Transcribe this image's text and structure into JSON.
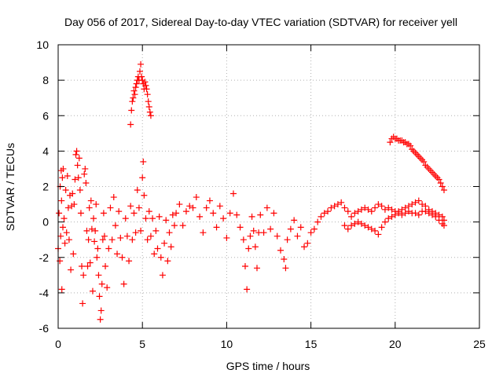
{
  "chart_data": {
    "type": "scatter",
    "title": "Day 056 of 2017, Sidereal Day-to-day VTEC variation (SDTVAR) for receiver yell",
    "xlabel": "GPS time / hours",
    "ylabel": "SDTVAR / TECUs",
    "xlim": [
      0,
      25
    ],
    "ylim": [
      -6,
      10
    ],
    "x_ticks": [
      0,
      5,
      10,
      15,
      20,
      25
    ],
    "y_ticks": [
      -6,
      -4,
      -2,
      0,
      2,
      4,
      6,
      8,
      10
    ],
    "grid": true,
    "marker": "+",
    "colors": {
      "series": "#ff0000",
      "grid": "#b0b0b0",
      "axes": "#000000",
      "background": "#ffffff"
    },
    "series": [
      {
        "name": "SDTVAR",
        "points": [
          [
            0.0,
            -1.5
          ],
          [
            0.05,
            0.5
          ],
          [
            0.1,
            -2.2
          ],
          [
            0.12,
            2.0
          ],
          [
            0.15,
            -0.8
          ],
          [
            0.18,
            2.9
          ],
          [
            0.2,
            1.2
          ],
          [
            0.22,
            -3.8
          ],
          [
            0.25,
            2.5
          ],
          [
            0.28,
            -0.3
          ],
          [
            0.3,
            3.0
          ],
          [
            0.35,
            0.2
          ],
          [
            0.4,
            -1.2
          ],
          [
            0.45,
            1.8
          ],
          [
            0.5,
            -0.6
          ],
          [
            0.55,
            2.6
          ],
          [
            0.6,
            0.8
          ],
          [
            0.65,
            -1.0
          ],
          [
            0.7,
            1.5
          ],
          [
            0.75,
            -2.7
          ],
          [
            0.8,
            0.9
          ],
          [
            0.85,
            1.6
          ],
          [
            0.9,
            -1.8
          ],
          [
            0.95,
            1.0
          ],
          [
            1.0,
            2.4
          ],
          [
            1.05,
            3.8
          ],
          [
            1.1,
            4.0
          ],
          [
            1.15,
            3.2
          ],
          [
            1.2,
            2.5
          ],
          [
            1.25,
            3.6
          ],
          [
            1.3,
            1.8
          ],
          [
            1.35,
            0.5
          ],
          [
            1.4,
            -2.5
          ],
          [
            1.45,
            -4.6
          ],
          [
            1.5,
            -3.0
          ],
          [
            1.55,
            2.7
          ],
          [
            1.6,
            3.0
          ],
          [
            1.65,
            2.2
          ],
          [
            1.7,
            -0.5
          ],
          [
            1.75,
            -2.5
          ],
          [
            1.8,
            -1.0
          ],
          [
            1.85,
            0.8
          ],
          [
            1.9,
            -2.3
          ],
          [
            1.95,
            1.2
          ],
          [
            2.0,
            -0.4
          ],
          [
            2.05,
            -3.9
          ],
          [
            2.1,
            0.2
          ],
          [
            2.15,
            -1.1
          ],
          [
            2.2,
            -0.5
          ],
          [
            2.25,
            1.0
          ],
          [
            2.3,
            -2.0
          ],
          [
            2.35,
            -1.5
          ],
          [
            2.4,
            -3.0
          ],
          [
            2.45,
            -4.2
          ],
          [
            2.5,
            -5.5
          ],
          [
            2.55,
            -5.0
          ],
          [
            2.6,
            -3.5
          ],
          [
            2.65,
            -1.0
          ],
          [
            2.7,
            0.5
          ],
          [
            2.75,
            -0.8
          ],
          [
            2.8,
            -2.5
          ],
          [
            2.9,
            -3.7
          ],
          [
            3.0,
            -1.5
          ],
          [
            3.1,
            0.8
          ],
          [
            3.2,
            -1.0
          ],
          [
            3.3,
            1.4
          ],
          [
            3.4,
            -0.2
          ],
          [
            3.5,
            -1.8
          ],
          [
            3.6,
            0.6
          ],
          [
            3.7,
            -0.9
          ],
          [
            3.8,
            -2.0
          ],
          [
            3.9,
            -3.5
          ],
          [
            4.0,
            0.2
          ],
          [
            4.1,
            -0.8
          ],
          [
            4.2,
            -2.2
          ],
          [
            4.3,
            0.9
          ],
          [
            4.4,
            -1.0
          ],
          [
            4.5,
            0.5
          ],
          [
            4.6,
            -0.6
          ],
          [
            4.7,
            1.8
          ],
          [
            4.8,
            0.8
          ],
          [
            4.9,
            -0.5
          ],
          [
            5.0,
            2.5
          ],
          [
            5.05,
            3.4
          ],
          [
            5.1,
            1.5
          ],
          [
            5.2,
            0.2
          ],
          [
            5.3,
            -1.0
          ],
          [
            5.4,
            0.6
          ],
          [
            5.5,
            -0.8
          ],
          [
            5.6,
            0.2
          ],
          [
            5.7,
            -1.8
          ],
          [
            5.8,
            -0.5
          ],
          [
            5.9,
            -1.5
          ],
          [
            6.0,
            0.3
          ],
          [
            6.1,
            -2.0
          ],
          [
            6.2,
            -3.0
          ],
          [
            6.3,
            -1.2
          ],
          [
            6.4,
            0.1
          ],
          [
            6.5,
            -2.2
          ],
          [
            6.6,
            -0.6
          ],
          [
            6.7,
            -1.4
          ],
          [
            6.8,
            0.4
          ],
          [
            6.9,
            -0.2
          ],
          [
            7.0,
            0.5
          ],
          [
            7.2,
            1.0
          ],
          [
            7.4,
            -0.2
          ],
          [
            7.6,
            0.6
          ],
          [
            7.8,
            0.9
          ],
          [
            8.0,
            0.8
          ],
          [
            8.2,
            1.4
          ],
          [
            8.4,
            0.3
          ],
          [
            8.6,
            -0.6
          ],
          [
            8.8,
            0.8
          ],
          [
            9.0,
            1.2
          ],
          [
            9.2,
            0.5
          ],
          [
            9.4,
            -0.3
          ],
          [
            9.6,
            0.9
          ],
          [
            9.8,
            0.2
          ],
          [
            10.0,
            -0.9
          ],
          [
            10.2,
            0.5
          ],
          [
            10.4,
            1.6
          ],
          [
            10.6,
            0.4
          ],
          [
            10.8,
            -0.3
          ],
          [
            11.0,
            -1.0
          ],
          [
            11.1,
            -2.5
          ],
          [
            11.2,
            -3.8
          ],
          [
            11.3,
            -1.5
          ],
          [
            11.4,
            -0.8
          ],
          [
            11.5,
            0.3
          ],
          [
            11.6,
            -0.5
          ],
          [
            11.7,
            -1.4
          ],
          [
            11.8,
            -2.6
          ],
          [
            11.9,
            -0.6
          ],
          [
            12.0,
            0.4
          ],
          [
            12.2,
            -0.6
          ],
          [
            12.4,
            0.8
          ],
          [
            12.6,
            -0.4
          ],
          [
            12.8,
            0.5
          ],
          [
            13.0,
            -0.8
          ],
          [
            13.2,
            -1.6
          ],
          [
            13.4,
            -2.1
          ],
          [
            13.5,
            -2.6
          ],
          [
            13.6,
            -1.0
          ],
          [
            13.8,
            -0.4
          ],
          [
            14.0,
            0.1
          ],
          [
            14.2,
            -0.8
          ],
          [
            14.4,
            -0.3
          ],
          [
            14.6,
            -1.4
          ],
          [
            14.8,
            -1.2
          ],
          [
            15.0,
            -0.6
          ],
          [
            15.2,
            -0.4
          ],
          [
            15.4,
            0.0
          ],
          [
            15.6,
            0.3
          ],
          [
            15.8,
            0.5
          ],
          [
            16.0,
            0.6
          ],
          [
            16.2,
            0.8
          ],
          [
            16.4,
            0.9
          ],
          [
            16.6,
            1.0
          ],
          [
            16.8,
            1.1
          ],
          [
            17.0,
            0.8
          ],
          [
            17.2,
            0.6
          ],
          [
            17.4,
            0.3
          ],
          [
            17.6,
            0.5
          ],
          [
            17.8,
            0.6
          ],
          [
            18.0,
            0.7
          ],
          [
            18.2,
            0.8
          ],
          [
            18.4,
            0.7
          ],
          [
            18.6,
            0.6
          ],
          [
            18.8,
            0.8
          ],
          [
            19.0,
            1.0
          ],
          [
            19.2,
            0.9
          ],
          [
            19.4,
            0.7
          ],
          [
            19.6,
            0.8
          ],
          [
            19.8,
            0.7
          ],
          [
            20.0,
            0.6
          ],
          [
            20.2,
            0.5
          ],
          [
            20.4,
            0.4
          ],
          [
            20.6,
            0.5
          ],
          [
            20.8,
            0.6
          ],
          [
            21.0,
            0.5
          ],
          [
            21.2,
            0.5
          ],
          [
            21.4,
            0.4
          ],
          [
            21.6,
            0.6
          ],
          [
            21.8,
            0.6
          ],
          [
            22.0,
            0.5
          ],
          [
            22.2,
            0.4
          ],
          [
            22.4,
            0.5
          ],
          [
            22.6,
            0.4
          ],
          [
            22.8,
            0.3
          ],
          [
            22.9,
            0.1
          ],
          [
            17.0,
            -0.2
          ],
          [
            17.2,
            -0.4
          ],
          [
            17.4,
            -0.2
          ],
          [
            17.6,
            -0.1
          ],
          [
            17.8,
            0.0
          ],
          [
            18.0,
            -0.1
          ],
          [
            18.2,
            -0.2
          ],
          [
            18.4,
            -0.3
          ],
          [
            18.6,
            -0.4
          ],
          [
            18.8,
            -0.5
          ],
          [
            19.0,
            -0.7
          ],
          [
            19.2,
            -0.3
          ],
          [
            19.4,
            0.0
          ],
          [
            19.6,
            0.2
          ],
          [
            19.8,
            0.3
          ],
          [
            20.0,
            0.4
          ],
          [
            20.2,
            0.6
          ],
          [
            20.4,
            0.7
          ],
          [
            20.6,
            0.8
          ],
          [
            20.8,
            0.9
          ],
          [
            21.0,
            1.0
          ],
          [
            21.2,
            1.1
          ],
          [
            21.4,
            1.2
          ],
          [
            21.6,
            1.0
          ],
          [
            21.8,
            0.9
          ],
          [
            22.0,
            0.7
          ],
          [
            22.2,
            0.6
          ],
          [
            22.4,
            0.3
          ],
          [
            22.6,
            0.1
          ],
          [
            22.8,
            -0.1
          ],
          [
            22.9,
            -0.2
          ],
          [
            19.7,
            4.5
          ],
          [
            19.8,
            4.7
          ],
          [
            19.9,
            4.8
          ],
          [
            20.0,
            4.7
          ],
          [
            20.1,
            4.7
          ],
          [
            20.2,
            4.6
          ],
          [
            20.3,
            4.6
          ],
          [
            20.4,
            4.6
          ],
          [
            20.5,
            4.5
          ],
          [
            20.6,
            4.5
          ],
          [
            20.7,
            4.4
          ],
          [
            20.8,
            4.4
          ],
          [
            20.9,
            4.3
          ],
          [
            21.0,
            4.1
          ],
          [
            21.1,
            4.0
          ],
          [
            21.2,
            3.9
          ],
          [
            21.3,
            3.8
          ],
          [
            21.4,
            3.7
          ],
          [
            21.5,
            3.6
          ],
          [
            21.6,
            3.5
          ],
          [
            21.7,
            3.4
          ],
          [
            21.8,
            3.2
          ],
          [
            21.9,
            3.1
          ],
          [
            22.0,
            3.0
          ],
          [
            22.1,
            2.9
          ],
          [
            22.2,
            2.8
          ],
          [
            22.3,
            2.7
          ],
          [
            22.4,
            2.6
          ],
          [
            22.5,
            2.5
          ],
          [
            22.6,
            2.4
          ],
          [
            22.7,
            2.2
          ],
          [
            22.8,
            2.0
          ],
          [
            22.9,
            1.8
          ],
          [
            4.3,
            5.5
          ],
          [
            4.35,
            6.3
          ],
          [
            4.4,
            6.8
          ],
          [
            4.45,
            7.0
          ],
          [
            4.5,
            7.4
          ],
          [
            4.55,
            7.2
          ],
          [
            4.6,
            7.6
          ],
          [
            4.65,
            7.8
          ],
          [
            4.7,
            8.0
          ],
          [
            4.75,
            8.2
          ],
          [
            4.8,
            8.0
          ],
          [
            4.85,
            8.5
          ],
          [
            4.9,
            8.9
          ],
          [
            4.95,
            8.2
          ],
          [
            5.0,
            8.0
          ],
          [
            5.05,
            7.8
          ],
          [
            5.1,
            7.5
          ],
          [
            5.15,
            7.9
          ],
          [
            5.2,
            7.7
          ],
          [
            5.25,
            7.5
          ],
          [
            5.3,
            7.2
          ],
          [
            5.35,
            6.8
          ],
          [
            5.4,
            6.5
          ],
          [
            5.45,
            6.2
          ],
          [
            5.5,
            6.0
          ]
        ]
      }
    ]
  }
}
